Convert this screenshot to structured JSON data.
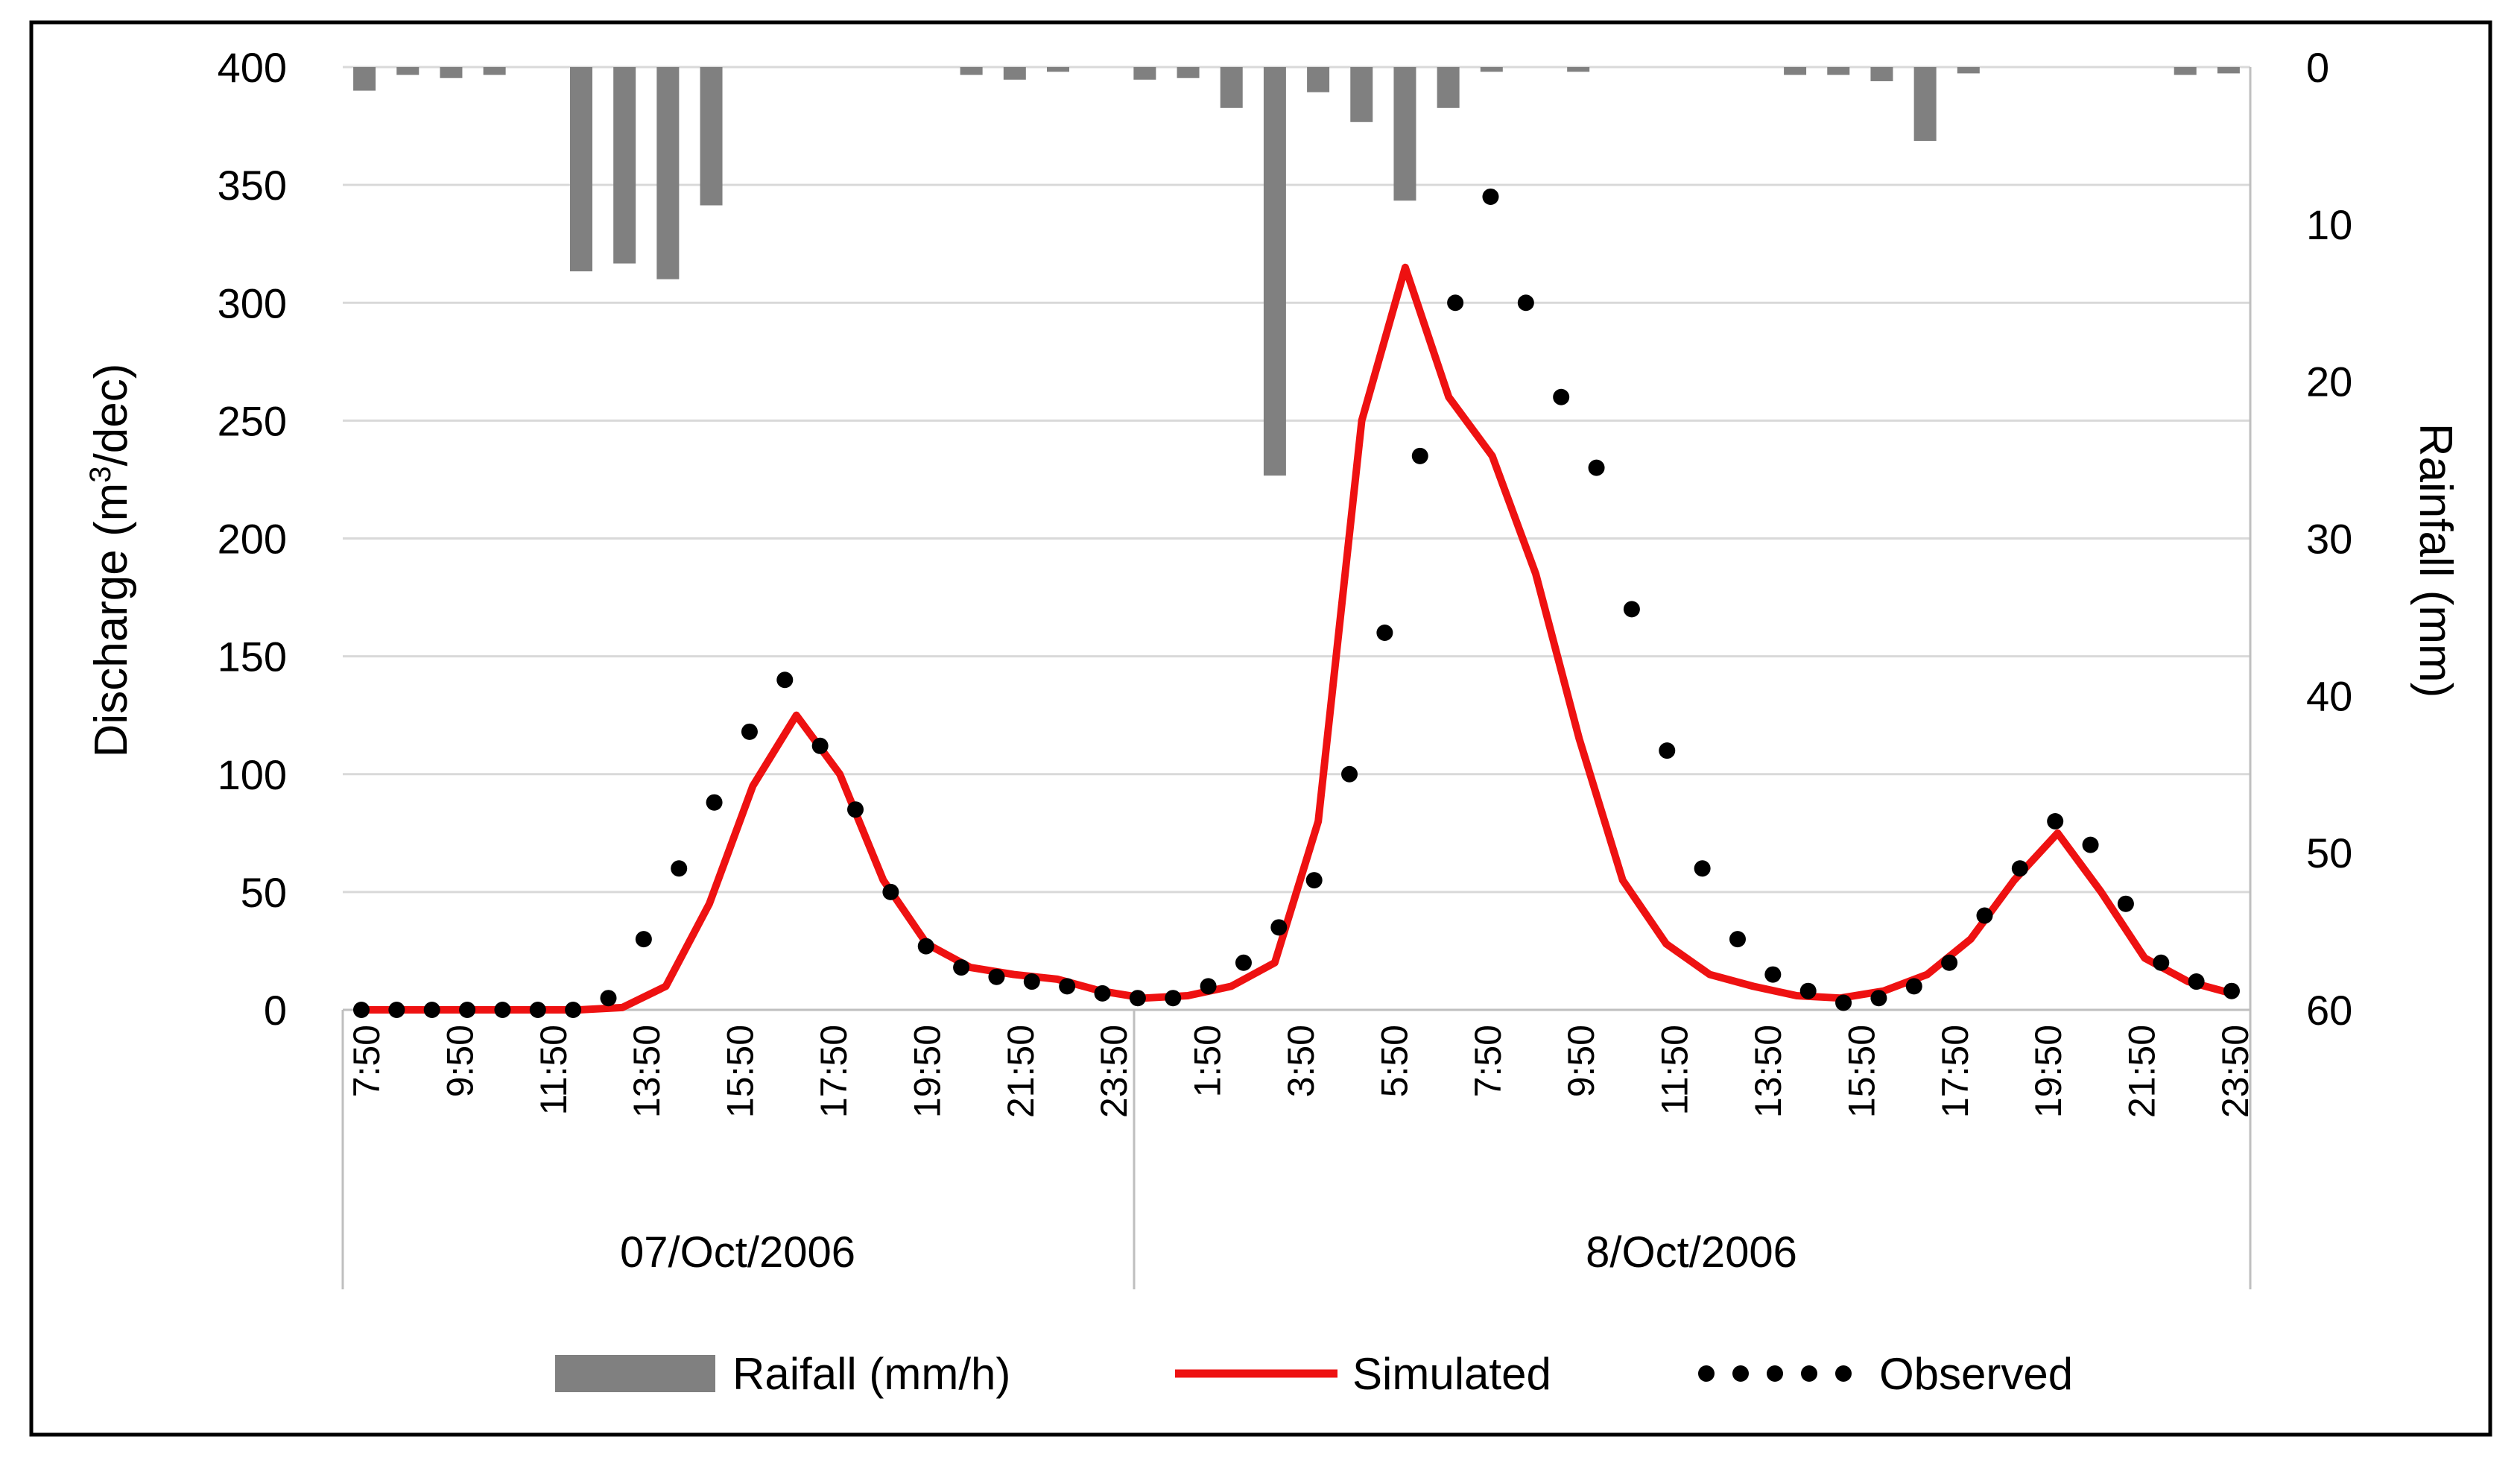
{
  "colors": {
    "rain": "#808080",
    "simulated": "#ee1111",
    "observed": "#000000",
    "grid": "#d9d9d9",
    "axis": "#bfbfbf",
    "frame": "#000000"
  },
  "chart_data": {
    "type": "bar+line",
    "title": "",
    "ylabel_left_prefix": "Discharge (m",
    "ylabel_left_sup": "3",
    "ylabel_left_suffix": "/dec)",
    "ylabel_right": "Rainfall (mm)",
    "ylim_left": [
      0,
      400
    ],
    "yticks_left": [
      "400",
      "350",
      "300",
      "250",
      "200",
      "150",
      "100",
      "50",
      "0"
    ],
    "ylim_right": [
      0,
      60
    ],
    "yticks_right": [
      "0",
      "10",
      "20",
      "30",
      "40",
      "50",
      "60"
    ],
    "grid": true,
    "legend_position": "bottom",
    "x_tick_labels": [
      "7:50",
      "9:50",
      "11:50",
      "13:50",
      "15:50",
      "17:50",
      "19:50",
      "21:50",
      "23:50",
      "1:50",
      "3:50",
      "5:50",
      "7:50",
      "9:50",
      "11:50",
      "13:50",
      "15:50",
      "17:50",
      "19:50",
      "21:50",
      "23:50"
    ],
    "groups": [
      "07/Oct/2006",
      "8/Oct/2006"
    ],
    "series": [
      {
        "name": "Raifall (mm/h)",
        "type": "bar",
        "axis": "right",
        "values": [
          1.5,
          0.5,
          0.7,
          0.5,
          0,
          13,
          12.5,
          13.5,
          8.8,
          0,
          0,
          0,
          0,
          0,
          0.5,
          0.8,
          0.3,
          0,
          0.8,
          0.7,
          2.6,
          26,
          1.6,
          3.5,
          8.5,
          2.6,
          0.3,
          0,
          0.3,
          0,
          0,
          0,
          0,
          0.5,
          0.5,
          0.9,
          4.7,
          0.4,
          0,
          0,
          0,
          0,
          0.5,
          0.4
        ]
      },
      {
        "name": "Simulated",
        "type": "line",
        "axis": "left",
        "values": [
          0,
          0,
          0,
          0,
          0,
          0,
          1,
          10,
          45,
          95,
          125,
          100,
          55,
          28,
          18,
          15,
          13,
          8,
          5,
          6,
          10,
          20,
          80,
          250,
          315,
          260,
          235,
          185,
          115,
          55,
          28,
          15,
          10,
          6,
          5,
          8,
          15,
          30,
          55,
          75,
          50,
          22,
          12,
          7
        ]
      },
      {
        "name": "Observed",
        "type": "dots",
        "axis": "left",
        "values": [
          0,
          0,
          0,
          0,
          0,
          0,
          0,
          5,
          30,
          60,
          88,
          118,
          140,
          112,
          85,
          50,
          27,
          18,
          14,
          12,
          10,
          7,
          5,
          5,
          10,
          20,
          35,
          55,
          100,
          160,
          235,
          300,
          345,
          300,
          260,
          230,
          170,
          110,
          60,
          30,
          15,
          8,
          3,
          5,
          10,
          20,
          40,
          60,
          80,
          70,
          45,
          20,
          12,
          8
        ]
      }
    ]
  }
}
